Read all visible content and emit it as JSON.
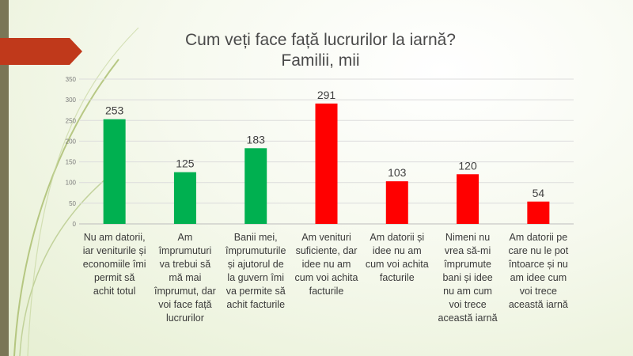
{
  "chart_data": {
    "type": "bar",
    "title": "Cum veți face față lucrurilor la iarnă?",
    "subtitle": "Familii, mii",
    "categories": [
      "Nu am datorii, iar veniturile și economiile îmi permit să achit totul",
      "Am împrumuturi va trebui să mă mai împrumut, dar voi face față lucrurilor",
      "Banii mei, împrumuturile și ajutorul de la guvern îmi va permite să achit facturile",
      "Am venituri suficiente, dar idee nu am cum voi achita facturile",
      "Am datorii și idee nu am cum voi achita facturile",
      "Nimeni nu vrea să-mi împrumute bani și idee nu am cum voi trece această iarnă",
      "Am datorii pe care nu le pot întoarce și nu am idee cum voi trece această iarnă"
    ],
    "values": [
      253,
      125,
      183,
      291,
      103,
      120,
      54
    ],
    "bar_colors": [
      "#00b050",
      "#00b050",
      "#00b050",
      "#ff0000",
      "#ff0000",
      "#ff0000",
      "#ff0000"
    ],
    "yticks": [
      0,
      50,
      100,
      150,
      200,
      250,
      300,
      350
    ],
    "ylim": [
      0,
      350
    ],
    "grid": true,
    "data_labels": true
  },
  "colors": {
    "positive": "#00b050",
    "negative": "#ff0000",
    "title_arrow": "#c0391b",
    "left_bar": "#7a7656"
  }
}
